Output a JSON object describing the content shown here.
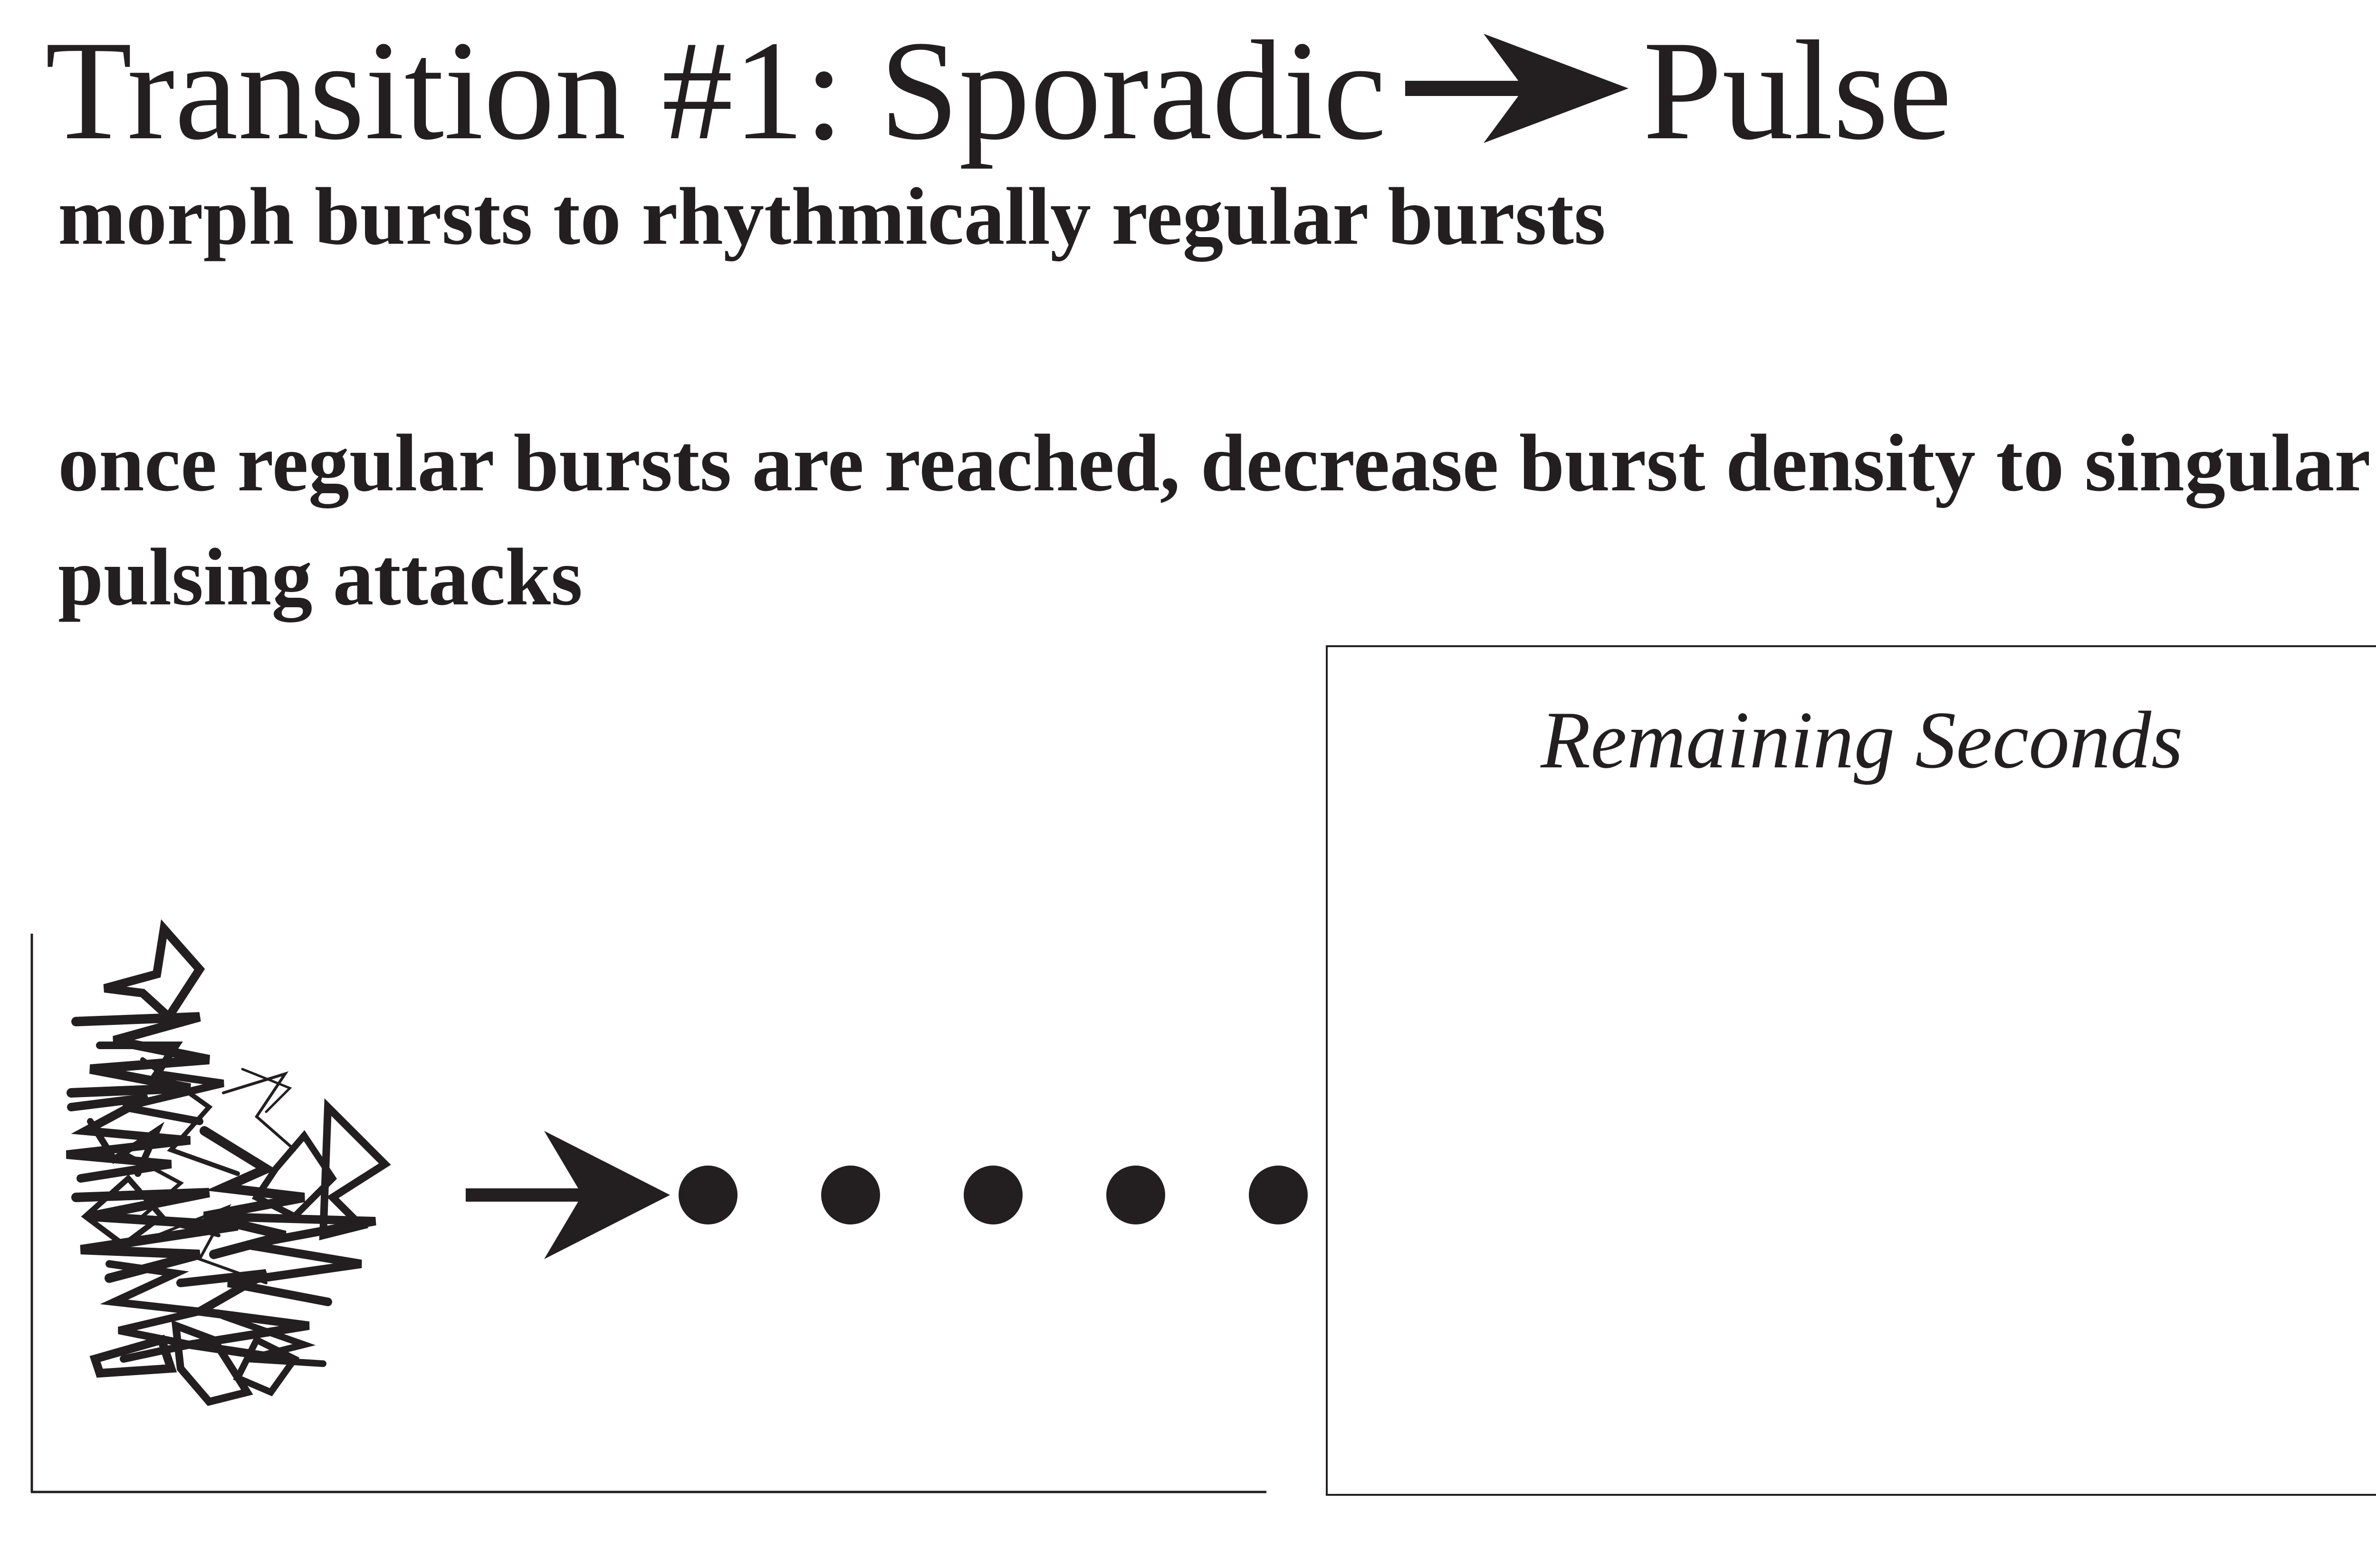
{
  "title": {
    "prefix": "Transition #1: Sporadic",
    "arrow_icon": "right-arrow-icon",
    "suffix": "Pulse"
  },
  "subtitle": "morph bursts to rhythmically regular bursts",
  "instruction": "once regular bursts are reached, decrease burst density to singular pulsing attacks",
  "diagram": {
    "burst_icon": "scribble-burst-icon",
    "arrow_icon": "right-arrow-icon",
    "pulse_dot_count": 5,
    "box_label": "Remaining Seconds"
  },
  "colors": {
    "ink": "#231f20",
    "background": "#ffffff"
  }
}
